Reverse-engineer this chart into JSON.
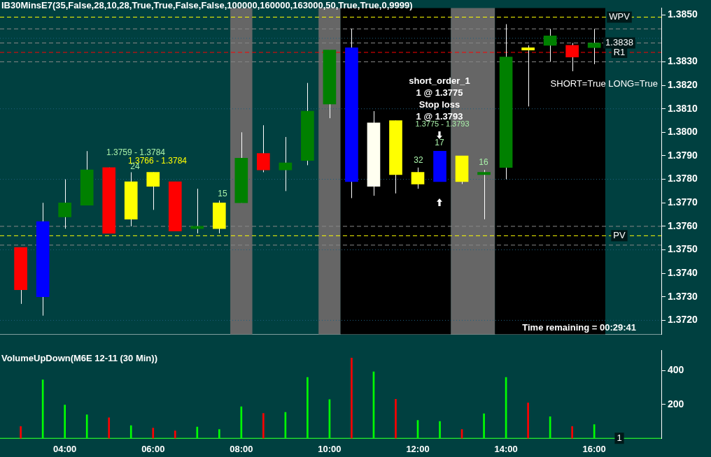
{
  "chart_data": [
    {
      "type": "candlestick",
      "title": "IB30MinsE7(35,False,28,10,28,True,True,False,False,100000,160000,163000,50,True,True,0,9999)",
      "x": [
        3,
        3.5,
        4,
        4.5,
        5,
        5.5,
        6,
        6.5,
        7,
        7.5,
        8,
        8.5,
        9,
        9.5,
        10,
        10.5,
        11,
        11.5,
        12,
        12.5,
        13,
        13.5,
        14,
        14.5,
        15,
        15.5,
        16
      ],
      "ohlc": [
        [
          1.3751,
          1.3751,
          1.3727,
          1.3733
        ],
        [
          1.373,
          1.377,
          1.3722,
          1.3762
        ],
        [
          1.3764,
          1.378,
          1.3759,
          1.377
        ],
        [
          1.3769,
          1.3792,
          1.3769,
          1.3784
        ],
        [
          1.3785,
          1.3785,
          1.3757,
          1.3757
        ],
        [
          1.3763,
          1.3783,
          1.376,
          1.3779
        ],
        [
          1.3783,
          1.3783,
          1.3767,
          1.3777
        ],
        [
          1.3779,
          1.3779,
          1.3758,
          1.3758
        ],
        [
          1.3759,
          1.3776,
          1.3757,
          1.376
        ],
        [
          1.3759,
          1.3771,
          1.3757,
          1.377
        ],
        [
          1.377,
          1.38,
          1.377,
          1.3789
        ],
        [
          1.3791,
          1.3803,
          1.3783,
          1.3784
        ],
        [
          1.3784,
          1.3798,
          1.3775,
          1.3787
        ],
        [
          1.3788,
          1.3821,
          1.3786,
          1.3809
        ],
        [
          1.3812,
          1.3835,
          1.3806,
          1.3835
        ],
        [
          1.3836,
          1.3844,
          1.3772,
          1.3779
        ],
        [
          1.3777,
          1.3809,
          1.3773,
          1.3804
        ],
        [
          1.3805,
          1.3805,
          1.3774,
          1.3782
        ],
        [
          1.3778,
          1.3785,
          1.3776,
          1.3783
        ],
        [
          1.3779,
          1.3792,
          1.3779,
          1.3792
        ],
        [
          1.379,
          1.379,
          1.3778,
          1.3779
        ],
        [
          1.3782,
          1.3784,
          1.3763,
          1.3783
        ],
        [
          1.3785,
          1.3846,
          1.378,
          1.3832
        ],
        [
          1.3836,
          1.3837,
          1.3811,
          1.3835
        ],
        [
          1.3837,
          1.3844,
          1.383,
          1.3841
        ],
        [
          1.3837,
          1.3838,
          1.3826,
          1.3832
        ],
        [
          1.3836,
          1.3844,
          1.3829,
          1.3838
        ]
      ],
      "colors": [
        "#ff0000",
        "#0000ff",
        "#008000",
        "#008000",
        "#ff0000",
        "#ffff00",
        "#ffff00",
        "#ff0000",
        "#008000",
        "#ffff00",
        "#008000",
        "#ff0000",
        "#008000",
        "#008000",
        "#008000",
        "#0000ff",
        "#fffff0",
        "#ffff00",
        "#ffff00",
        "#0000ff",
        "#ffff00",
        "#008000",
        "#008000",
        "#ffff00",
        "#008000",
        "#ff0000",
        "#008000"
      ],
      "xlim": [
        2.53,
        17.52
      ],
      "ylim": [
        1.3714,
        1.38529
      ],
      "yticks": [
        {
          "value": 1.372,
          "label": "1.3720"
        },
        {
          "value": 1.373,
          "label": "1.3730"
        },
        {
          "value": 1.374,
          "label": "1.3740"
        },
        {
          "value": 1.375,
          "label": "1.3750"
        },
        {
          "value": 1.376,
          "label": "1.3760"
        },
        {
          "value": 1.377,
          "label": "1.3770"
        },
        {
          "value": 1.378,
          "label": "1.3780"
        },
        {
          "value": 1.379,
          "label": "1.3790"
        },
        {
          "value": 1.38,
          "label": "1.3800"
        },
        {
          "value": 1.381,
          "label": "1.3810"
        },
        {
          "value": 1.382,
          "label": "1.3820"
        },
        {
          "value": 1.383,
          "label": "1.3830"
        },
        {
          "value": 1.385,
          "label": "1.3850"
        }
      ],
      "tick_labels": "y",
      "grid": false,
      "legend": false,
      "bands": [
        {
          "axis": "x",
          "from": 7.75,
          "to": 8.25,
          "color": "#666666"
        },
        {
          "axis": "x",
          "from": 9.75,
          "to": 10.25,
          "color": "#666666"
        },
        {
          "axis": "x",
          "from": 10.25,
          "to": 12.75,
          "color": "#000000"
        },
        {
          "axis": "x",
          "from": 12.75,
          "to": 13.75,
          "color": "#666666"
        },
        {
          "axis": "x",
          "from": 13.75,
          "to": 16.25,
          "color": "#000000"
        }
      ],
      "ref_lines": [
        {
          "axis": "y",
          "value": 1.384,
          "color": "#1f5f7f",
          "line_style": "dotted"
        },
        {
          "axis": "y",
          "value": 1.381,
          "color": "#1f5f7f",
          "line_style": "dotted"
        },
        {
          "axis": "y",
          "value": 1.378,
          "color": "#1f5f7f",
          "line_style": "dotted"
        },
        {
          "axis": "y",
          "value": 1.375,
          "color": "#1f5f7f",
          "line_style": "dotted"
        },
        {
          "axis": "y",
          "value": 1.372,
          "color": "#1f5f7f",
          "line_style": "dotted"
        },
        {
          "axis": "y",
          "value": 1.3844,
          "color": "#888888",
          "line_style": "dashed"
        },
        {
          "axis": "y",
          "value": 1.383,
          "color": "#888888",
          "line_style": "dashed"
        },
        {
          "axis": "y",
          "value": 1.376,
          "color": "#888888",
          "line_style": "dashed"
        },
        {
          "axis": "y",
          "value": 1.3752,
          "color": "#888888",
          "line_style": "dashed"
        },
        {
          "axis": "y",
          "value": 1.3838,
          "label": "1.3838",
          "color": "#888888",
          "line_style": "dashed"
        },
        {
          "axis": "y",
          "value": 1.3849,
          "label": "WPV",
          "color": "#ffff00",
          "line_style": "dashed"
        },
        {
          "axis": "y",
          "value": 1.3834,
          "label": "R1",
          "color": "#ff0000",
          "line_style": "dashed"
        },
        {
          "axis": "y",
          "value": 1.3756,
          "label": "PV",
          "color": "#ffff00",
          "line_style": "dashed"
        }
      ],
      "annotations": [
        "SHORT=True LONG=True",
        "Time remaining = 00:29:41",
        "1.3759 - 1.3784",
        "1.3766 - 1.3784",
        "short_order_1",
        "1 @ 1.3775",
        "Stop loss",
        "1 @ 1.3793",
        "1.3775 - 1.3793",
        "24",
        "15",
        "17",
        "32",
        "16"
      ]
    },
    {
      "type": "bar",
      "title": "VolumeUpDown(M6E 12-11 (30 Min))",
      "x": [
        3,
        3.5,
        4,
        4.5,
        5,
        5.5,
        6,
        6.5,
        7,
        7.5,
        8,
        8.5,
        9,
        9.5,
        10,
        10.5,
        11,
        11.5,
        12,
        12.5,
        13,
        13.5,
        14,
        14.5,
        15,
        15.5,
        16
      ],
      "values": [
        70,
        345,
        197,
        139,
        122,
        75,
        61,
        44,
        67,
        53,
        186,
        147,
        153,
        359,
        228,
        473,
        392,
        231,
        106,
        100,
        53,
        145,
        359,
        209,
        128,
        70,
        81
      ],
      "colors": [
        "#ff0000",
        "#00ff00",
        "#00ff00",
        "#00ff00",
        "#ff0000",
        "#00ff00",
        "#ff0000",
        "#ff0000",
        "#00ff00",
        "#00ff00",
        "#00ff00",
        "#ff0000",
        "#00ff00",
        "#00ff00",
        "#00ff00",
        "#ff0000",
        "#00ff00",
        "#ff0000",
        "#00ff00",
        "#00ff00",
        "#ff0000",
        "#00ff00",
        "#00ff00",
        "#ff0000",
        "#00ff00",
        "#ff0000",
        "#00ff00"
      ],
      "xlim": [
        2.53,
        17.52
      ],
      "ylim": [
        0,
        518
      ],
      "yticks": [
        200,
        400
      ],
      "xticks": [
        {
          "value": 4,
          "label": "04:00"
        },
        {
          "value": 6,
          "label": "06:00"
        },
        {
          "value": 8,
          "label": "08:00"
        },
        {
          "value": 10,
          "label": "10:00"
        },
        {
          "value": 12,
          "label": "12:00"
        },
        {
          "value": 14,
          "label": "14:00"
        },
        {
          "value": 16,
          "label": "16:00"
        }
      ],
      "grid": false,
      "legend": false,
      "ref_lines": [
        {
          "axis": "y",
          "value": 1,
          "label": "1",
          "color": "#00ff00"
        }
      ]
    }
  ]
}
